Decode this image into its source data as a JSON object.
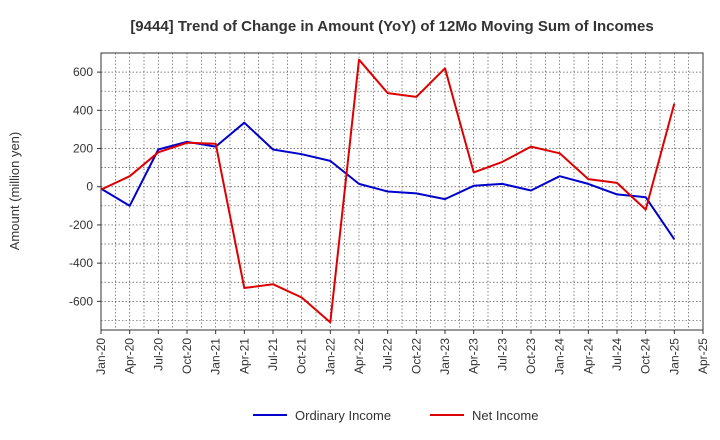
{
  "chart_data": {
    "type": "line",
    "title": "[9444]  Trend of Change in Amount (YoY) of 12Mo Moving Sum of Incomes",
    "xlabel": "",
    "ylabel": "Amount (million yen)",
    "ylim": [
      -750,
      700
    ],
    "yticks": [
      -600,
      -400,
      -200,
      0,
      200,
      400,
      600
    ],
    "categories": [
      "Jan-20",
      "Apr-20",
      "Jul-20",
      "Oct-20",
      "Jan-21",
      "Apr-21",
      "Jul-21",
      "Oct-21",
      "Jan-22",
      "Apr-22",
      "Jul-22",
      "Oct-22",
      "Jan-23",
      "Apr-23",
      "Jul-23",
      "Oct-23",
      "Jan-24",
      "Apr-24",
      "Jul-24",
      "Oct-24",
      "Jan-25",
      "Apr-25"
    ],
    "grid": true,
    "legend_position": "bottom",
    "series": [
      {
        "name": "Ordinary Income",
        "color": "#0000cc",
        "values": [
          -10,
          -100,
          195,
          235,
          210,
          335,
          195,
          170,
          135,
          15,
          -25,
          -35,
          -65,
          5,
          15,
          -20,
          55,
          15,
          -40,
          -55,
          -275,
          null
        ]
      },
      {
        "name": "Net Income",
        "color": "#dd0000",
        "values": [
          -15,
          55,
          180,
          230,
          225,
          -530,
          -510,
          -580,
          -710,
          665,
          490,
          470,
          620,
          75,
          130,
          210,
          175,
          40,
          20,
          -120,
          435,
          null
        ]
      }
    ]
  }
}
